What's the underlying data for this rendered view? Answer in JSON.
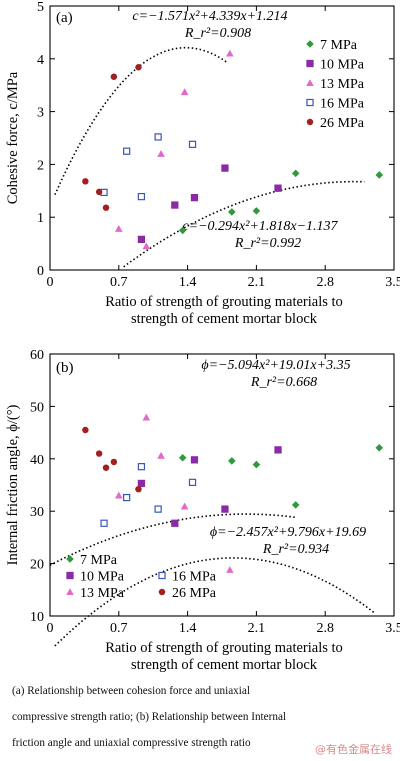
{
  "chart_data": [
    {
      "type": "scatter",
      "panel_label": "(a)",
      "xlabel_lines": [
        "Ratio of strength of grouting materials to",
        "strength of cement mortar block"
      ],
      "ylabel": "Cohesive force, c/MPa",
      "xlim": [
        0,
        3.5
      ],
      "ylim": [
        0,
        5
      ],
      "xticks": [
        "0",
        "0.7",
        "1.4",
        "2.1",
        "2.8",
        "3.5"
      ],
      "yticks": [
        "0",
        "1",
        "2",
        "3",
        "4",
        "5"
      ],
      "legend_position": "right",
      "series": [
        {
          "name": "7 MPa",
          "marker": "diamond",
          "color": "#2e9a3b",
          "filled": true,
          "points": [
            [
              1.35,
              0.75
            ],
            [
              1.85,
              1.1
            ],
            [
              2.1,
              1.12
            ],
            [
              2.5,
              1.83
            ],
            [
              3.35,
              1.8
            ]
          ]
        },
        {
          "name": "10 MPa",
          "marker": "square",
          "color": "#8a2aa6",
          "filled": true,
          "points": [
            [
              0.93,
              0.58
            ],
            [
              1.27,
              1.23
            ],
            [
              1.47,
              1.37
            ],
            [
              1.78,
              1.93
            ],
            [
              2.32,
              1.55
            ]
          ]
        },
        {
          "name": "13 MPa",
          "marker": "triangle",
          "color": "#e468c8",
          "filled": true,
          "points": [
            [
              0.7,
              0.78
            ],
            [
              0.98,
              0.45
            ],
            [
              1.13,
              2.2
            ],
            [
              1.37,
              3.37
            ],
            [
              1.83,
              4.1
            ]
          ]
        },
        {
          "name": "16 MPa",
          "marker": "square",
          "color": "#3a56b8",
          "filled": false,
          "points": [
            [
              0.55,
              1.47
            ],
            [
              0.78,
              2.25
            ],
            [
              0.93,
              1.39
            ],
            [
              1.1,
              2.52
            ],
            [
              1.45,
              2.38
            ]
          ]
        },
        {
          "name": "26 MPa",
          "marker": "circle",
          "color": "#a32020",
          "filled": true,
          "points": [
            [
              0.36,
              1.68
            ],
            [
              0.5,
              1.48
            ],
            [
              0.57,
              1.18
            ],
            [
              0.65,
              3.66
            ],
            [
              0.9,
              3.84
            ]
          ]
        }
      ],
      "fits": [
        {
          "equation": "c=−1.571x²+4.339x+1.214",
          "r2": "R_r²=0.908",
          "a": -1.571,
          "b": 4.339,
          "c": 1.214,
          "x_range": [
            0.05,
            1.8
          ]
        },
        {
          "equation": "c=−0.294x²+1.818x−1.137",
          "r2": "R_r²=0.992",
          "a": -0.294,
          "b": 1.818,
          "c": -1.137,
          "x_range": [
            0.75,
            3.2
          ]
        }
      ]
    },
    {
      "type": "scatter",
      "panel_label": "(b)",
      "xlabel_lines": [
        "Ratio of strength of grouting materials to",
        "strength of cement mortar block"
      ],
      "ylabel": "Internal friction angle, ϕ/(°)",
      "xlim": [
        0,
        3.5
      ],
      "ylim": [
        10,
        60
      ],
      "xticks": [
        "0",
        "0.7",
        "1.4",
        "2.1",
        "2.8",
        "3.5"
      ],
      "yticks": [
        "10",
        "20",
        "30",
        "40",
        "50",
        "60"
      ],
      "legend_position": "bottom-left",
      "series": [
        {
          "name": "7 MPa",
          "marker": "diamond",
          "color": "#2e9a3b",
          "filled": true,
          "points": [
            [
              1.35,
              40.2
            ],
            [
              1.85,
              39.6
            ],
            [
              2.1,
              38.9
            ],
            [
              2.5,
              31.2
            ],
            [
              3.35,
              42.1
            ]
          ]
        },
        {
          "name": "10 MPa",
          "marker": "square",
          "color": "#8a2aa6",
          "filled": true,
          "points": [
            [
              0.93,
              35.3
            ],
            [
              1.27,
              27.7
            ],
            [
              1.47,
              39.8
            ],
            [
              1.78,
              30.4
            ],
            [
              2.32,
              41.7
            ]
          ]
        },
        {
          "name": "13 MPa",
          "marker": "triangle",
          "color": "#e468c8",
          "filled": true,
          "points": [
            [
              0.7,
              33.0
            ],
            [
              0.98,
              47.9
            ],
            [
              1.13,
              40.6
            ],
            [
              1.37,
              30.9
            ],
            [
              1.83,
              18.8
            ]
          ]
        },
        {
          "name": "16 MPa",
          "marker": "square",
          "color": "#3a56b8",
          "filled": false,
          "points": [
            [
              0.55,
              27.7
            ],
            [
              0.78,
              32.6
            ],
            [
              0.93,
              38.5
            ],
            [
              1.1,
              30.4
            ],
            [
              1.45,
              35.5
            ]
          ]
        },
        {
          "name": "26 MPa",
          "marker": "circle",
          "color": "#a32020",
          "filled": true,
          "points": [
            [
              0.36,
              45.5
            ],
            [
              0.5,
              41.0
            ],
            [
              0.57,
              38.3
            ],
            [
              0.65,
              39.4
            ],
            [
              0.9,
              34.2
            ]
          ]
        }
      ],
      "fits": [
        {
          "equation": "ϕ=−5.094x²+19.01x+3.35",
          "r2": "R_r²=0.668",
          "a": -5.094,
          "b": 19.01,
          "c": 3.35,
          "x_range": [
            0.05,
            3.3
          ]
        },
        {
          "equation": "ϕ=−2.457x²+9.796x+19.69",
          "r2": "R_r²=0.934",
          "a": -2.457,
          "b": 9.796,
          "c": 19.69,
          "x_range": [
            0.0,
            2.5
          ]
        }
      ]
    }
  ],
  "caption": {
    "line1": "(a) Relationship between cohesion force and uniaxial",
    "line2": "compressive strength ratio; (b) Relationship between Internal",
    "line3": "friction angle and uniaxial compressive strength ratio"
  },
  "watermark": "@有色金属在线"
}
